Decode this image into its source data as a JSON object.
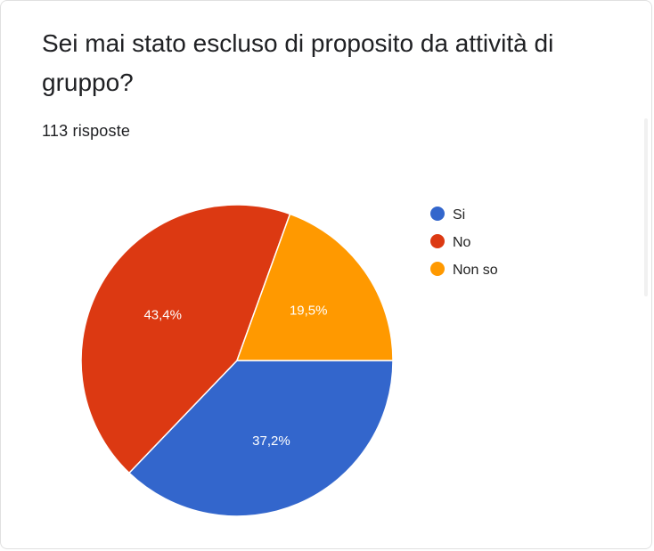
{
  "card": {
    "title": "Sei mai stato escluso di proposito da attività di gruppo?",
    "response_count": "113 risposte"
  },
  "chart_data": {
    "type": "pie",
    "categories": [
      "Si",
      "No",
      "Non so"
    ],
    "values": [
      37.2,
      43.4,
      19.5
    ],
    "value_labels": [
      "37,2%",
      "43,4%",
      "19,5%"
    ],
    "colors": [
      "#3366cc",
      "#dc3912",
      "#ff9900"
    ],
    "start_angle_deg": 90,
    "direction": "clockwise",
    "legend_position": "right"
  }
}
